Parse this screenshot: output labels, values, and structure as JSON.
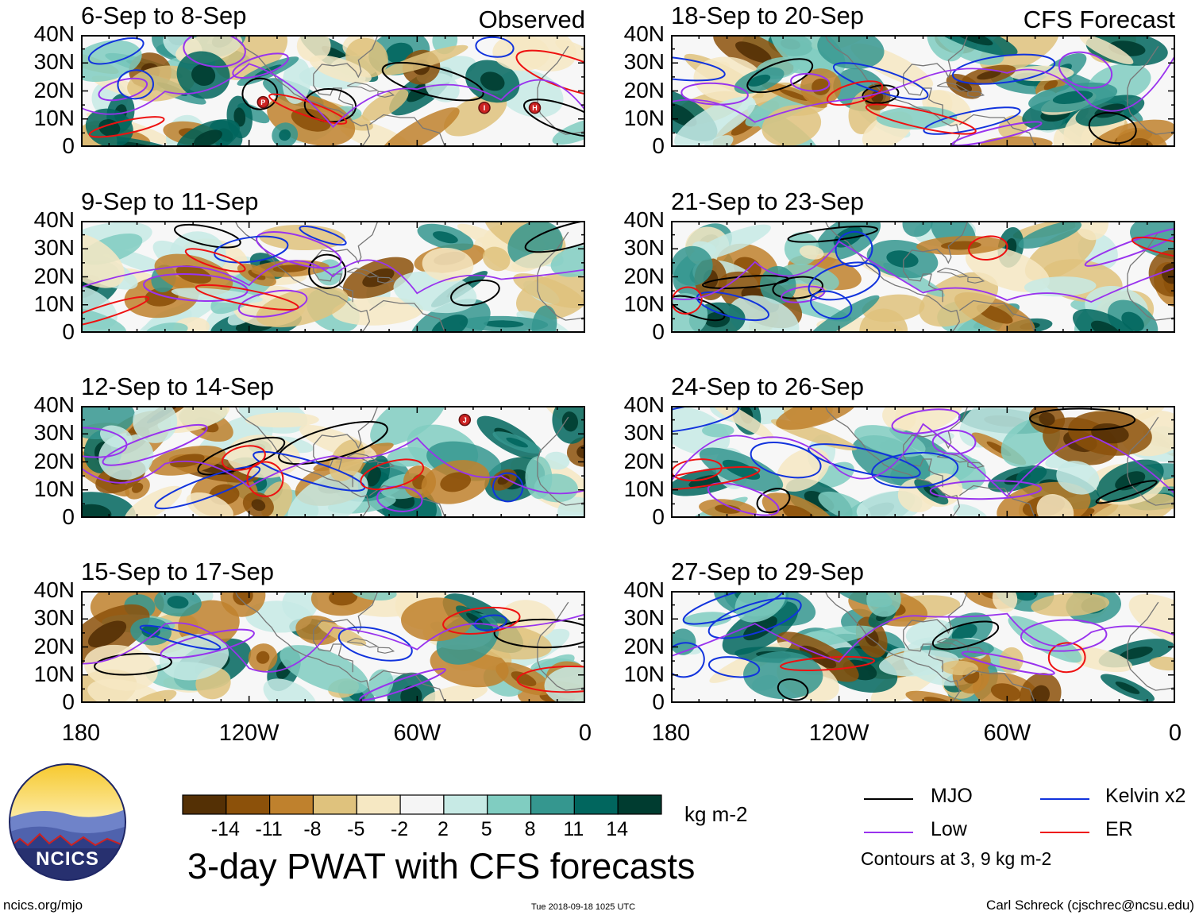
{
  "chart_data": {
    "type": "heatmap",
    "title": "3-day PWAT with CFS forecasts",
    "variable": "precipitable water anomaly",
    "units": "kg m-2",
    "x_ticks": [
      "180",
      "120W",
      "60W",
      "0"
    ],
    "y_ticks": [
      "0",
      "10N",
      "20N",
      "30N",
      "40N"
    ],
    "xlim": [
      -180,
      0
    ],
    "ylim": [
      0,
      40
    ],
    "colorbar_levels": [
      "-14",
      "-11",
      "-8",
      "-5",
      "-2",
      "2",
      "5",
      "8",
      "11",
      "14"
    ],
    "colorbar_colors": [
      "#543005",
      "#8c510a",
      "#bf812d",
      "#dfc27d",
      "#f6e8c3",
      "#f5f5f5",
      "#c7eae5",
      "#80cdc1",
      "#35978f",
      "#01665e",
      "#003c30"
    ],
    "panels": [
      {
        "period": "6-Sep to 8-Sep",
        "label": "Observed",
        "storms": [
          "P",
          "I",
          "H"
        ]
      },
      {
        "period": "9-Sep to 11-Sep"
      },
      {
        "period": "12-Sep to 14-Sep",
        "storms": [
          "J"
        ]
      },
      {
        "period": "15-Sep to 17-Sep"
      },
      {
        "period": "18-Sep to 20-Sep",
        "label": "CFS Forecast"
      },
      {
        "period": "21-Sep to 23-Sep"
      },
      {
        "period": "24-Sep to 26-Sep"
      },
      {
        "period": "27-Sep to 29-Sep"
      }
    ],
    "contours": [
      {
        "name": "MJO",
        "color": "#000000"
      },
      {
        "name": "Low",
        "color": "#9933ee"
      },
      {
        "name": "Kelvin x2",
        "color": "#1133dd"
      },
      {
        "name": "ER",
        "color": "#ee1111"
      }
    ],
    "contour_note": "Contours at 3, 9 kg m-2"
  },
  "logo_text": "NCICS",
  "footer": {
    "url": "ncics.org/mjo",
    "timestamp": "Tue 2018-09-18 1025 UTC",
    "author": "Carl Schreck (cjschrec@ncsu.edu)"
  }
}
